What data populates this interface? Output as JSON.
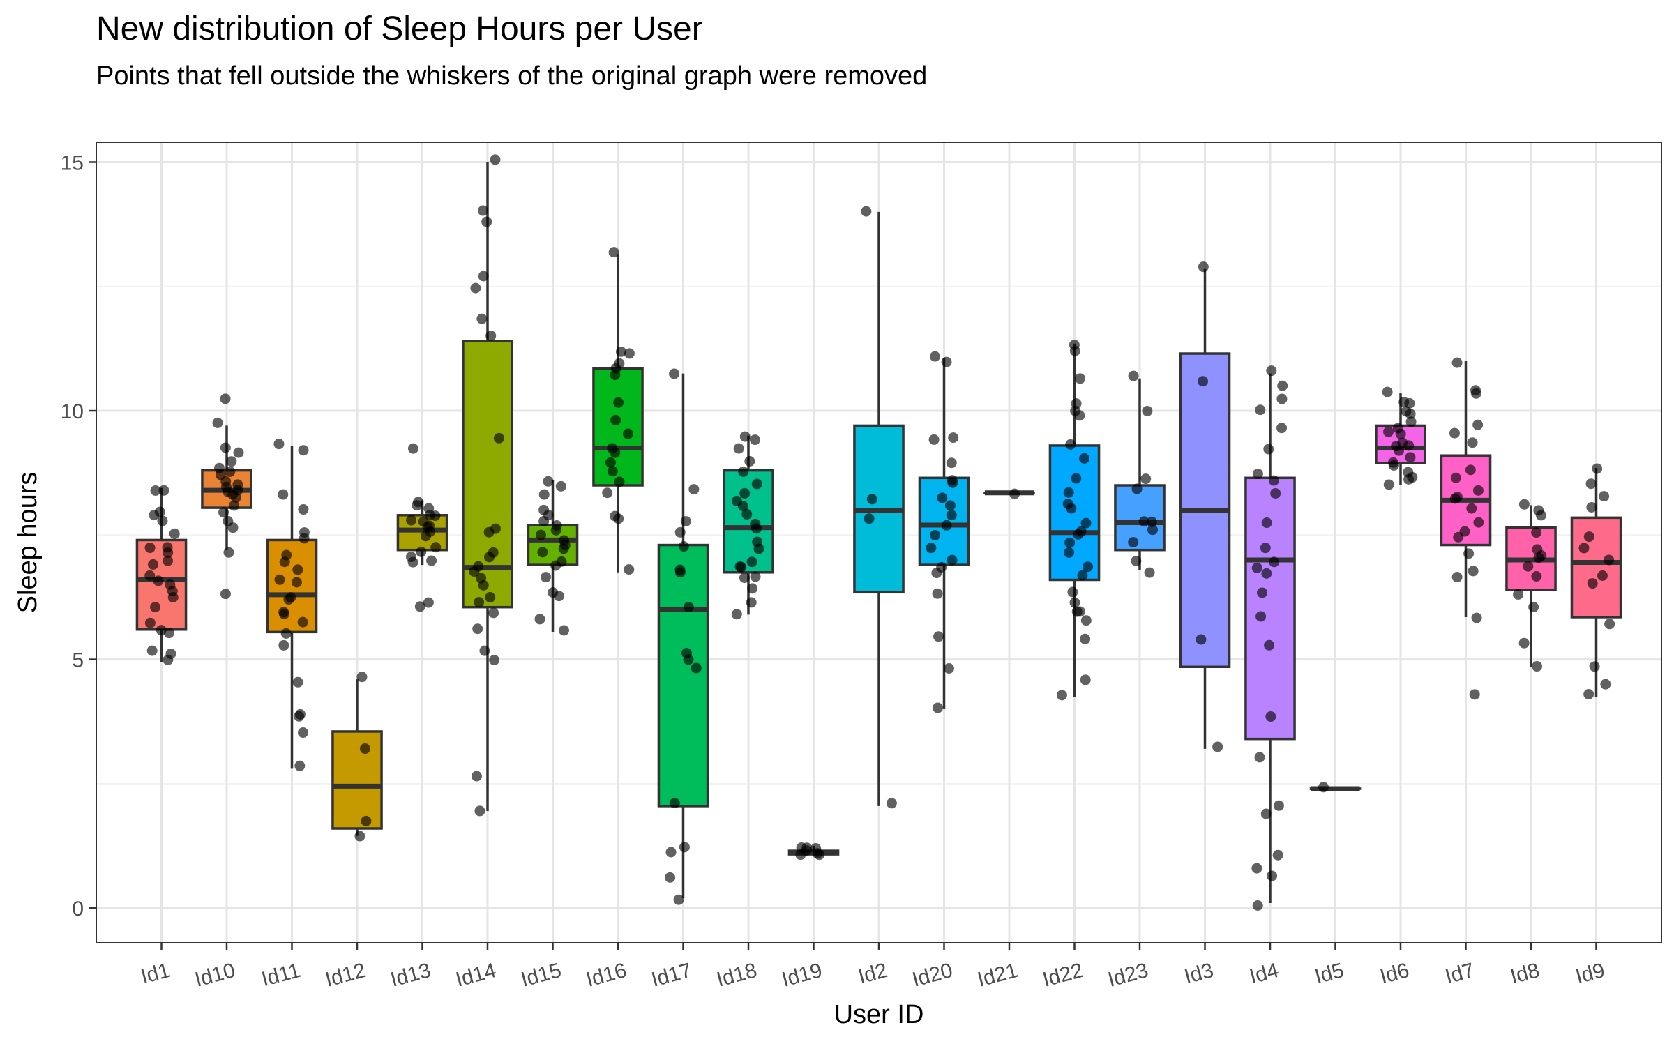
{
  "chart_data": {
    "type": "box",
    "title": "New distribution of Sleep Hours per User",
    "subtitle": "Points that fell outside the whiskers of the original graph were removed",
    "xlabel": "User ID",
    "ylabel": "Sleep hours",
    "ylim": [
      -0.7,
      15.4
    ],
    "yticks": [
      0,
      5,
      10,
      15
    ],
    "grid": true,
    "legend": "none",
    "categories": [
      "Id1",
      "Id10",
      "Id11",
      "Id12",
      "Id13",
      "Id14",
      "Id15",
      "Id16",
      "Id17",
      "Id18",
      "Id19",
      "Id2",
      "Id20",
      "Id21",
      "Id22",
      "Id23",
      "Id3",
      "Id4",
      "Id5",
      "Id6",
      "Id7",
      "Id8",
      "Id9"
    ],
    "boxes": [
      {
        "category": "Id1",
        "color": "#F8766D",
        "min": 4.95,
        "q1": 5.6,
        "median": 6.6,
        "q3": 7.4,
        "max": 8.45,
        "points": [
          4.95,
          5.1,
          5.15,
          5.5,
          5.6,
          5.7,
          6.1,
          6.3,
          6.4,
          6.5,
          6.6,
          6.7,
          6.9,
          7.0,
          7.1,
          7.2,
          7.3,
          7.5,
          7.8,
          7.9,
          8.0,
          8.4,
          8.45
        ]
      },
      {
        "category": "Id10",
        "color": "#EB8335",
        "min": 7.2,
        "q1": 8.05,
        "median": 8.4,
        "q3": 8.8,
        "max": 9.7,
        "points": [
          6.3,
          7.2,
          7.6,
          7.8,
          8.0,
          8.1,
          8.2,
          8.3,
          8.35,
          8.4,
          8.45,
          8.5,
          8.6,
          8.7,
          8.8,
          8.9,
          9.0,
          9.1,
          9.3,
          9.7,
          10.2
        ]
      },
      {
        "category": "Id11",
        "color": "#DA8F00",
        "min": 2.8,
        "q1": 5.55,
        "median": 6.3,
        "q3": 7.4,
        "max": 9.3,
        "points": [
          2.8,
          3.5,
          3.85,
          3.9,
          4.5,
          5.3,
          5.5,
          5.7,
          5.9,
          6.0,
          6.2,
          6.3,
          6.5,
          6.6,
          6.8,
          7.0,
          7.1,
          7.4,
          7.5,
          8.0,
          8.3,
          9.2,
          9.3
        ]
      },
      {
        "category": "Id12",
        "color": "#C49A00",
        "min": 1.45,
        "q1": 1.6,
        "median": 2.45,
        "q3": 3.55,
        "max": 4.6,
        "points": [
          1.45,
          1.7,
          3.2,
          4.6
        ]
      },
      {
        "category": "Id13",
        "color": "#AAA200",
        "min": 6.9,
        "q1": 7.2,
        "median": 7.6,
        "q3": 7.9,
        "max": 8.2,
        "points": [
          6.1,
          6.2,
          6.9,
          7.0,
          7.1,
          7.2,
          7.3,
          7.5,
          7.6,
          7.65,
          7.7,
          7.75,
          7.8,
          7.85,
          7.9,
          8.0,
          8.05,
          8.2,
          9.25
        ]
      },
      {
        "category": "Id14",
        "color": "#8EAA00",
        "min": 1.95,
        "q1": 6.05,
        "median": 6.85,
        "q3": 11.4,
        "max": 15.0,
        "points": [
          1.95,
          2.6,
          4.95,
          5.2,
          5.6,
          5.9,
          6.1,
          6.3,
          6.5,
          6.6,
          6.8,
          6.9,
          7.0,
          7.2,
          7.5,
          7.6,
          9.5,
          11.5,
          11.8,
          12.5,
          12.7,
          13.85,
          14.0,
          15.05
        ]
      },
      {
        "category": "Id15",
        "color": "#64B200",
        "min": 5.55,
        "q1": 6.9,
        "median": 7.4,
        "q3": 7.7,
        "max": 8.6,
        "points": [
          5.55,
          5.8,
          6.3,
          6.4,
          6.7,
          6.9,
          7.0,
          7.1,
          7.2,
          7.3,
          7.4,
          7.5,
          7.6,
          7.7,
          7.8,
          7.9,
          8.0,
          8.3,
          8.5,
          8.6
        ]
      },
      {
        "category": "Id16",
        "color": "#00B81B",
        "min": 6.75,
        "q1": 8.5,
        "median": 9.25,
        "q3": 10.85,
        "max": 13.15,
        "points": [
          6.75,
          7.8,
          7.85,
          8.4,
          8.6,
          8.8,
          9.0,
          9.2,
          9.3,
          9.5,
          9.8,
          10.2,
          10.7,
          10.9,
          11.0,
          11.1,
          11.15,
          13.15
        ]
      },
      {
        "category": "Id17",
        "color": "#00BD5C",
        "min": 0.2,
        "q1": 2.05,
        "median": 6.0,
        "q3": 7.3,
        "max": 10.75,
        "points": [
          0.2,
          0.65,
          1.15,
          1.25,
          2.05,
          4.85,
          5.0,
          5.1,
          6.0,
          6.75,
          6.8,
          7.3,
          7.6,
          7.8,
          8.4,
          10.75
        ]
      },
      {
        "category": "Id18",
        "color": "#00C08B",
        "min": 5.9,
        "q1": 6.75,
        "median": 7.65,
        "q3": 8.8,
        "max": 9.5,
        "points": [
          5.9,
          6.1,
          6.4,
          6.6,
          6.7,
          6.8,
          6.9,
          7.0,
          7.2,
          7.4,
          7.6,
          7.7,
          7.9,
          8.1,
          8.2,
          8.35,
          8.5,
          8.8,
          9.0,
          9.2,
          9.4,
          9.5
        ]
      },
      {
        "category": "Id19",
        "color": "#00C0B5",
        "min": 1.05,
        "q1": 1.08,
        "median": 1.12,
        "q3": 1.15,
        "max": 1.25,
        "points": [
          1.05,
          1.08,
          1.1,
          1.12,
          1.15,
          1.2,
          1.25
        ]
      },
      {
        "category": "Id2",
        "color": "#00BCD8",
        "min": 2.05,
        "q1": 6.35,
        "median": 8.0,
        "q3": 9.7,
        "max": 14.0,
        "points": [
          2.05,
          7.8,
          8.25,
          14.0
        ]
      },
      {
        "category": "Id20",
        "color": "#00B4EF",
        "min": 4.0,
        "q1": 6.9,
        "median": 7.7,
        "q3": 8.65,
        "max": 11.05,
        "points": [
          4.0,
          4.8,
          5.5,
          6.3,
          6.7,
          6.9,
          7.0,
          7.2,
          7.5,
          7.7,
          7.9,
          8.1,
          8.3,
          8.5,
          8.6,
          8.9,
          9.4,
          9.5,
          11.0,
          11.05
        ]
      },
      {
        "category": "Id21",
        "color": "#00A6FF",
        "min": 8.35,
        "q1": 8.35,
        "median": 8.35,
        "q3": 8.35,
        "max": 8.35,
        "points": [
          8.35
        ]
      },
      {
        "category": "Id22",
        "color": "#00A9FF",
        "min": 4.25,
        "q1": 6.6,
        "median": 7.55,
        "q3": 9.3,
        "max": 11.35,
        "points": [
          4.25,
          4.6,
          5.4,
          5.8,
          5.9,
          6.0,
          6.2,
          6.4,
          6.7,
          6.9,
          7.1,
          7.3,
          7.5,
          7.6,
          7.8,
          8.0,
          8.1,
          8.3,
          8.6,
          9.0,
          9.3,
          9.9,
          10.0,
          10.1,
          10.7,
          11.2,
          11.35
        ]
      },
      {
        "category": "Id23",
        "color": "#45A0FF",
        "min": 6.8,
        "q1": 7.2,
        "median": 7.75,
        "q3": 8.5,
        "max": 10.65,
        "points": [
          6.8,
          7.0,
          7.4,
          7.6,
          7.75,
          7.8,
          8.4,
          8.6,
          9.95,
          10.65
        ]
      },
      {
        "category": "Id3",
        "color": "#8F91FF",
        "min": 3.2,
        "q1": 4.85,
        "median": 8.0,
        "q3": 11.15,
        "max": 12.85,
        "points": [
          3.2,
          5.4,
          10.6,
          12.85
        ]
      },
      {
        "category": "Id4",
        "color": "#B983FF",
        "min": 0.1,
        "q1": 3.4,
        "median": 7.0,
        "q3": 8.65,
        "max": 10.75,
        "points": [
          0.1,
          0.6,
          0.8,
          1.1,
          1.85,
          2.0,
          3.0,
          3.85,
          5.25,
          5.9,
          6.3,
          6.7,
          6.9,
          7.0,
          7.2,
          7.7,
          8.3,
          8.6,
          8.7,
          9.2,
          9.7,
          10.0,
          10.2,
          10.5,
          10.75
        ]
      },
      {
        "category": "Id5",
        "color": "#DC71FA",
        "min": 2.4,
        "q1": 2.4,
        "median": 2.4,
        "q3": 2.4,
        "max": 2.4,
        "points": [
          2.4
        ]
      },
      {
        "category": "Id6",
        "color": "#F365E6",
        "min": 8.5,
        "q1": 8.95,
        "median": 9.25,
        "q3": 9.7,
        "max": 10.35,
        "points": [
          8.5,
          8.6,
          8.7,
          8.8,
          8.9,
          9.0,
          9.1,
          9.2,
          9.25,
          9.3,
          9.4,
          9.5,
          9.6,
          9.7,
          9.8,
          9.9,
          10.0,
          10.1,
          10.2,
          10.35
        ]
      },
      {
        "category": "Id7",
        "color": "#FF61C7",
        "min": 5.85,
        "q1": 7.3,
        "median": 8.2,
        "q3": 9.1,
        "max": 11.0,
        "points": [
          4.35,
          5.85,
          6.6,
          6.8,
          7.1,
          7.5,
          7.6,
          7.8,
          8.0,
          8.2,
          8.3,
          8.4,
          8.6,
          8.8,
          9.3,
          9.5,
          9.7,
          10.3,
          10.45,
          11.0
        ]
      },
      {
        "category": "Id8",
        "color": "#FF62A9",
        "min": 4.85,
        "q1": 6.4,
        "median": 7.0,
        "q3": 7.65,
        "max": 8.1,
        "points": [
          4.85,
          5.35,
          6.0,
          6.3,
          6.7,
          6.9,
          7.0,
          7.1,
          7.2,
          7.6,
          7.95,
          8.05,
          8.1
        ]
      },
      {
        "category": "Id9",
        "color": "#FD6A8A",
        "min": 4.25,
        "q1": 5.85,
        "median": 6.95,
        "q3": 7.85,
        "max": 8.85,
        "points": [
          4.25,
          4.45,
          4.8,
          5.7,
          6.5,
          6.65,
          7.0,
          7.2,
          7.5,
          8.0,
          8.25,
          8.5,
          8.85
        ]
      }
    ]
  }
}
